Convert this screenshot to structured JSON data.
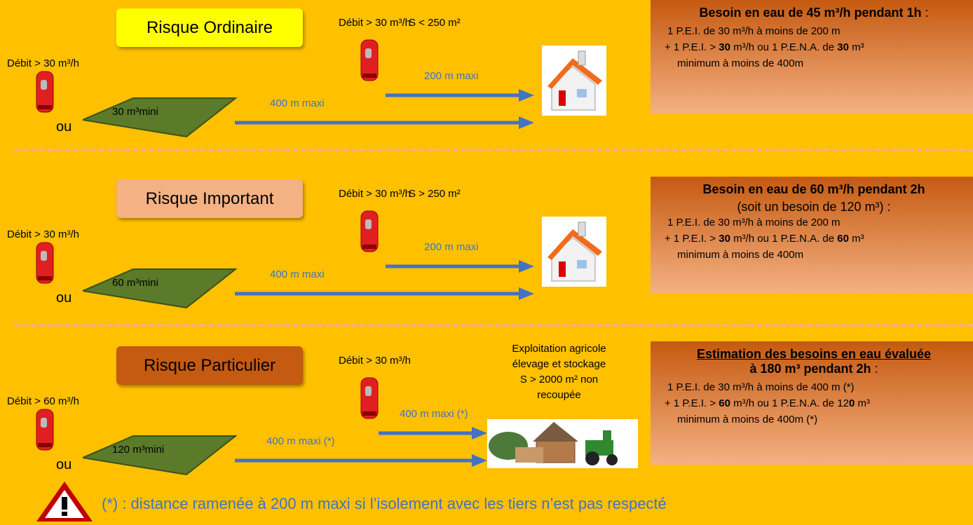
{
  "sections": [
    {
      "title": "Risque Ordinaire",
      "left_flow": "Débit > 30 m³/h",
      "connector": "ou",
      "tank": "30 m³mini",
      "top_flow": "Débit > 30 m³/h",
      "near_distance": "200 m maxi",
      "far_distance": "400 m maxi",
      "surface": [
        "S < 250 m²"
      ],
      "requirement": {
        "heading": [
          "Besoin en eau de 45 m³/h pendant 1h",
          " :"
        ],
        "lines": [
          [
            "1 P.E.I. de 30 m³/h à moins de 200 m"
          ],
          [
            "+ 1 P.E.I. > ",
            "30",
            " m³/h ou 1 P.E.N.A. de ",
            "30",
            " m³"
          ],
          [
            "minimum à moins de 400m"
          ]
        ]
      }
    },
    {
      "title": "Risque Important",
      "left_flow": "Débit > 30 m³/h",
      "connector": "ou",
      "tank": "60 m³mini",
      "top_flow": "Débit > 30 m³/h",
      "near_distance": "200 m maxi",
      "far_distance": "400 m maxi",
      "surface": [
        "S > 250 m²"
      ],
      "requirement": {
        "heading": [
          "Besoin en eau de 60 m³/h pendant 2h"
        ],
        "subheading": "(soit un besoin de 120 m³) :",
        "lines": [
          [
            "1 P.E.I. de 30 m³/h à moins de 200 m"
          ],
          [
            "+ 1 P.E.I. > ",
            "30",
            " m³/h ou 1 P.E.N.A. de ",
            "60",
            " m³"
          ],
          [
            "minimum à moins de 400m"
          ]
        ]
      }
    },
    {
      "title": "Risque Particulier",
      "left_flow": "Débit > 60 m³/h",
      "connector": "ou",
      "tank": "120 m³mini",
      "top_flow": "Débit > 30 m³/h",
      "near_distance": "400 m maxi (*)",
      "far_distance": "400 m maxi (*)",
      "surface": [
        "Exploitation agricole",
        "élevage et stockage",
        "S > 2000 m² non",
        "recoupée"
      ],
      "requirement": {
        "heading": [
          "Estimation des besoins en eau évaluée",
          "à 180 m³ pendant 2h",
          " :"
        ],
        "lines": [
          [
            "1 P.E.I. de 30 m³/h à moins de 400 m (*)"
          ],
          [
            "+ 1 P.E.I. > ",
            "60",
            " m³/h ou 1 P.E.N.A. de 12",
            "0",
            " m³"
          ],
          [
            "minimum à moins de 400m (*)"
          ]
        ]
      }
    }
  ],
  "footnote": "(*) : distance ramenée à 200 m maxi si l’isolement avec les tiers n’est pas respecté"
}
